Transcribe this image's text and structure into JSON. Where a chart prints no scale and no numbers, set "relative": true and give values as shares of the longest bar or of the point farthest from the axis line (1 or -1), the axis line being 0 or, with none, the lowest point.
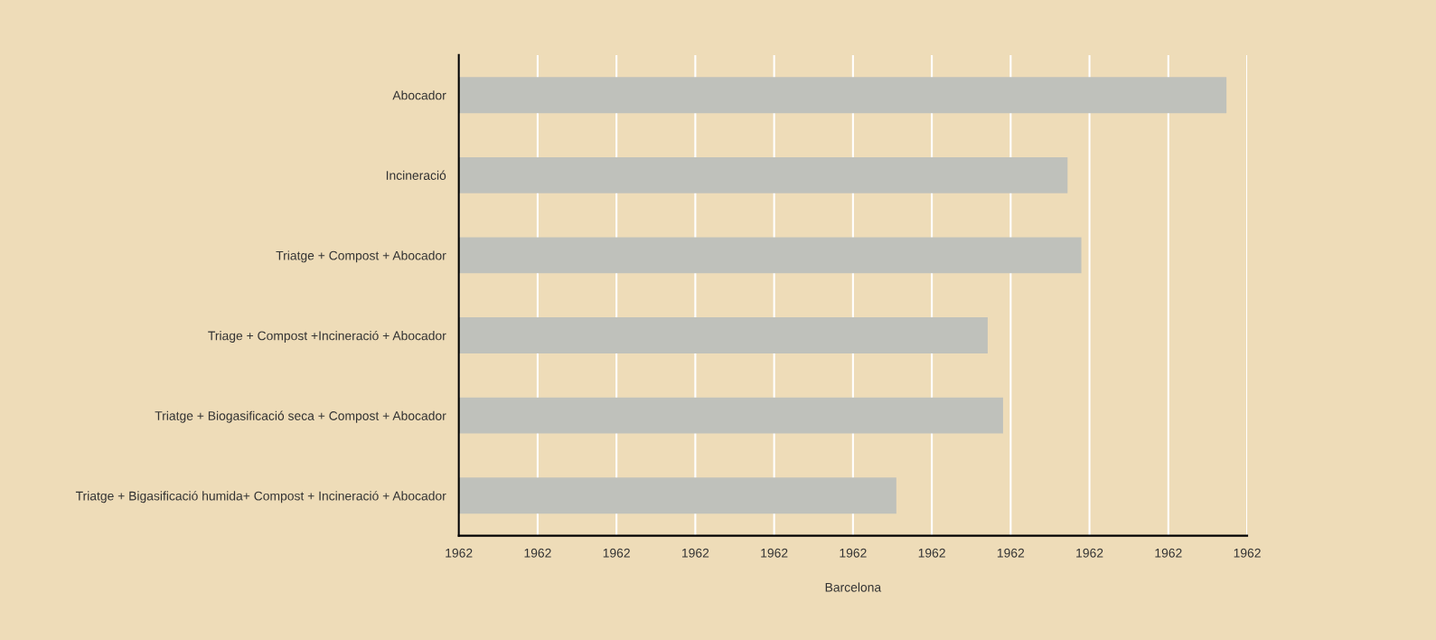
{
  "chart_data": {
    "type": "bar",
    "orientation": "horizontal",
    "xlabel": "Barcelona",
    "relative": true,
    "categories": [
      "Abocador",
      "Incineració",
      "Triatge + Compost + Abocador",
      "Triage + Compost +Incineració + Abocador",
      "Triatge + Biogasificació seca + Compost + Abocador",
      "Triatge + Bigasificació humida+ Compost + Incineració + Abocador"
    ],
    "values": [
      1,
      0.793,
      0.811,
      0.689,
      0.709,
      0.57
    ],
    "color": "#bfc1bb",
    "annotations": [
      "1962",
      "1962",
      "1962",
      "1962",
      "1962",
      "1962",
      "1962",
      "1962",
      "1962",
      "1962",
      "1962"
    ],
    "grid": "x"
  }
}
